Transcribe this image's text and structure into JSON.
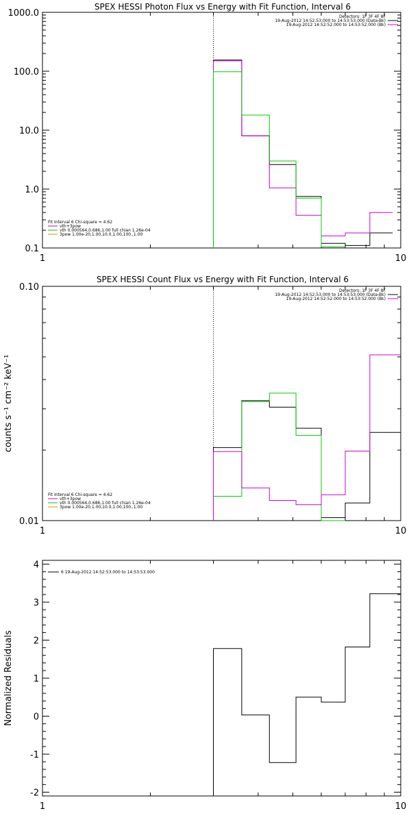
{
  "chart_data": [
    {
      "type": "line",
      "title": "SPEX HESSI Photon Flux vs Energy with Fit Function, Interval 6",
      "xlabel": "",
      "ylabel": "",
      "xscale": "log",
      "yscale": "log",
      "xlim": [
        1,
        10
      ],
      "ylim": [
        0.1,
        1000
      ],
      "x_ticks": [
        "1",
        "10"
      ],
      "y_ticks": [
        "0.1",
        "1.0",
        "10.0",
        "100.0",
        "1000.0"
      ],
      "vline": 3,
      "bin_edges": [
        3,
        3.6,
        4.3,
        5.1,
        6.0,
        7.0,
        8.2,
        9.5,
        10
      ],
      "legend_top_right": [
        {
          "label": "Detectors: 1F 3F 4F 8F",
          "color": ""
        },
        {
          "label": "19-Aug-2012 14:52:53.000 to 14:53:53.000 (Data-Bk)",
          "color": "#000000"
        },
        {
          "label": "19-Aug-2012 14:52:52.000 to 14:53:52.000 (Bk)",
          "color": "#cc00cc"
        }
      ],
      "legend_bottom_left": [
        {
          "label": "Fit Interval 6   Chi-square = 4.62",
          "color": "#000000"
        },
        {
          "label": "vth+3pow",
          "color": "#cc00cc"
        },
        {
          "label": "vth 0.000564,0.686,1.00  full chian 1.26e-04",
          "color": "#00cc00"
        },
        {
          "label": "3pow 1.00e-20,1.00,10.0,1.00,100.,1.00",
          "color": "#cc9900"
        }
      ],
      "series": [
        {
          "name": "19-Aug-2012 14:52:53.000 to 14:53:53.000 (Data-Bk)",
          "color": "#000000",
          "values": [
            155,
            8,
            2.6,
            0.75,
            0.12,
            0.11,
            0.18
          ]
        },
        {
          "name": "19-Aug-2012 14:52:52.000 to 14:53:52.000 (Bk)",
          "color": "#cc00cc",
          "values": [
            150,
            8,
            1.05,
            0.36,
            0.16,
            0.18,
            0.4
          ]
        },
        {
          "name": "vth 0.000564,0.686,1.00  full chian 1.26e-04",
          "color": "#00cc00",
          "values": [
            98,
            18,
            3.0,
            0.7,
            0.105,
            null,
            null
          ]
        }
      ]
    },
    {
      "type": "line",
      "title": "SPEX HESSI Count Flux vs Energy with Fit Function, Interval 6",
      "xlabel": "",
      "ylabel": "counts s⁻¹ cm⁻² keV⁻¹",
      "xscale": "log",
      "yscale": "log",
      "xlim": [
        1,
        10
      ],
      "ylim": [
        0.01,
        0.1
      ],
      "x_ticks": [
        "1",
        "10"
      ],
      "y_ticks": [
        "0.01",
        "0.10"
      ],
      "vline": 3,
      "bin_edges": [
        3,
        3.6,
        4.3,
        5.1,
        6.0,
        7.0,
        8.2,
        9.5,
        10
      ],
      "legend_top_right": [
        {
          "label": "Detectors: 1F 3F 4F 8F",
          "color": ""
        },
        {
          "label": "19-Aug-2012 14:52:53.000 to 14:53:53.000 (Data-Bk)",
          "color": "#000000"
        },
        {
          "label": "19-Aug-2012 14:52:52.000 to 14:53:52.000 (Bk)",
          "color": "#cc00cc"
        }
      ],
      "legend_bottom_left": [
        {
          "label": "Fit Interval 6   Chi-square = 4.62",
          "color": "#000000"
        },
        {
          "label": "vth+3pow",
          "color": "#cc00cc"
        },
        {
          "label": "vth 0.000564,0.686,1.00  full chian 1.26e-04",
          "color": "#00cc00"
        },
        {
          "label": "3pow 1.00e-20,1.00,10.0,1.00,100.,1.00",
          "color": "#cc9900"
        }
      ],
      "series": [
        {
          "name": "19-Aug-2012 14:52:53.000 to 14:53:53.000 (Data-Bk)",
          "color": "#000000",
          "values": [
            0.0205,
            0.0325,
            0.0305,
            0.0248,
            0.0103,
            0.0119,
            0.0238,
            0.0238
          ]
        },
        {
          "name": "vth 0.000564,0.686,1.00  full chian 1.26e-04",
          "color": "#00cc00",
          "values": [
            0.0127,
            0.0322,
            0.035,
            0.0231,
            0.0095,
            null,
            null,
            null
          ]
        },
        {
          "name": "19-Aug-2012 14:52:52.000 to 14:53:52.000 (Bk)",
          "color": "#cc00cc",
          "values": [
            0.0197,
            0.0138,
            0.0122,
            0.0117,
            0.0129,
            0.0198,
            0.051,
            0.051
          ]
        }
      ]
    },
    {
      "type": "line",
      "title": "",
      "xlabel": "",
      "ylabel": "Normalized Residuals",
      "xscale": "log",
      "yscale": "linear",
      "xlim": [
        1,
        10
      ],
      "ylim": [
        -2.1,
        4.1
      ],
      "x_ticks": [
        "1",
        "10"
      ],
      "y_ticks": [
        "-2",
        "-1",
        "0",
        "1",
        "2",
        "3",
        "4"
      ],
      "bin_edges": [
        3,
        3.6,
        4.3,
        5.1,
        6.0,
        7.0,
        8.2,
        9.5,
        10
      ],
      "legend_top_left": [
        {
          "label": "6  19-Aug-2012 14:52:53.000 to 14:53:53.000",
          "color": "#000000"
        }
      ],
      "series": [
        {
          "name": "6  19-Aug-2012 14:52:53.000 to 14:53:53.000",
          "color": "#000000",
          "values": [
            1.78,
            0.03,
            -1.22,
            0.5,
            0.37,
            1.82,
            3.22,
            3.22
          ]
        }
      ]
    }
  ]
}
